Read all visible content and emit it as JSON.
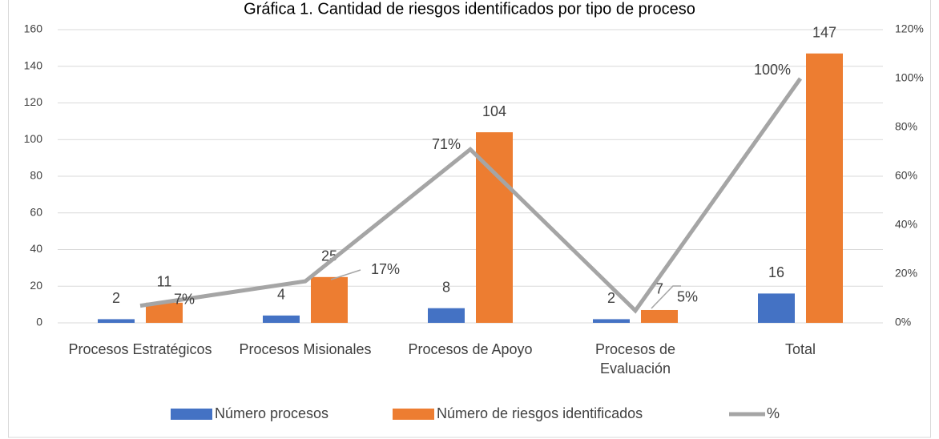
{
  "chart_data": {
    "type": "bar",
    "title": "Gráfica 1. Cantidad de riesgos identificados por tipo de proceso",
    "categories": [
      "Procesos Estratégicos",
      "Procesos Misionales",
      "Procesos de Apoyo",
      "Procesos de Evaluación",
      "Total"
    ],
    "series": [
      {
        "name": "Número procesos",
        "color": "#4472c4",
        "values": [
          2,
          4,
          8,
          2,
          16
        ]
      },
      {
        "name": "Número de riesgos identificados",
        "color": "#ed7d31",
        "values": [
          11,
          25,
          104,
          7,
          147
        ]
      },
      {
        "name": "%",
        "color": "#a5a5a5",
        "type": "line",
        "axis": "y2",
        "values": [
          7,
          17,
          71,
          5,
          100
        ],
        "value_labels": [
          "7%",
          "17%",
          "71%",
          "5%",
          "100%"
        ]
      }
    ],
    "ylim": [
      0,
      160
    ],
    "yticks": [
      0,
      20,
      40,
      60,
      80,
      100,
      120,
      140,
      160
    ],
    "y2lim": [
      0,
      120
    ],
    "y2ticks": [
      {
        "value": 0,
        "label": "0%"
      },
      {
        "value": 20,
        "label": "20%"
      },
      {
        "value": 40,
        "label": "40%"
      },
      {
        "value": 60,
        "label": "60%"
      },
      {
        "value": 80,
        "label": "80%"
      },
      {
        "value": 100,
        "label": "100%"
      },
      {
        "value": 120,
        "label": "120%"
      }
    ],
    "grid": true,
    "legend": "bottom"
  }
}
